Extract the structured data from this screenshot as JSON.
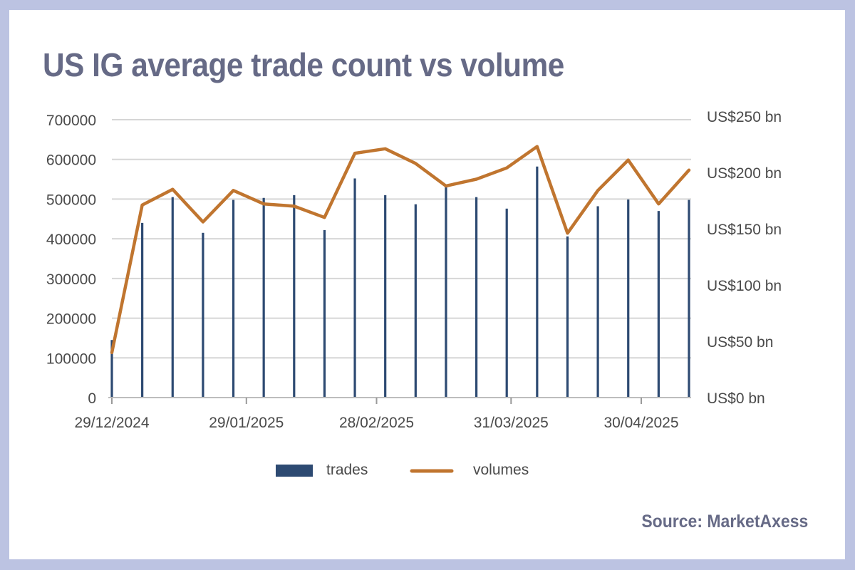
{
  "title": "US IG average trade count vs volume",
  "source": "Source: MarketAxess",
  "colors": {
    "background_frame": "#bcc3e2",
    "title": "#666a86",
    "trades": "#2d4a72",
    "volumes": "#c0752f",
    "grid": "#d6d6d6",
    "axis_text": "#4a4a4a"
  },
  "chart_data": {
    "type": "bar",
    "combo": "bar + line, dual y-axis",
    "x_dates": [
      "29/12/2024",
      "05/01/2025",
      "12/01/2025",
      "19/01/2025",
      "26/01/2025",
      "02/02/2025",
      "09/02/2025",
      "16/02/2025",
      "23/02/2025",
      "02/03/2025",
      "09/03/2025",
      "16/03/2025",
      "23/03/2025",
      "30/03/2025",
      "06/04/2025",
      "13/04/2025",
      "20/04/2025",
      "27/04/2025",
      "04/05/2025",
      "11/05/2025"
    ],
    "x_tick_labels": [
      "29/12/2024",
      "29/01/2025",
      "28/02/2025",
      "31/03/2025",
      "30/04/2025"
    ],
    "x_tick_dates": [
      "29/12/2024",
      "29/01/2025",
      "28/02/2025",
      "31/03/2025",
      "30/04/2025"
    ],
    "series": [
      {
        "name": "trades",
        "kind": "bar",
        "axis": "left",
        "values": [
          145000,
          440000,
          505000,
          415000,
          498000,
          503000,
          510000,
          422000,
          552000,
          510000,
          487000,
          530000,
          505000,
          476000,
          582000,
          406000,
          482000,
          499000,
          470000,
          498000
        ]
      },
      {
        "name": "volumes",
        "kind": "line",
        "axis": "right",
        "unit": "US$ bn",
        "values": [
          40,
          171,
          185,
          156,
          184,
          172,
          170,
          160,
          217,
          221,
          208,
          188,
          194,
          204,
          223,
          146,
          184,
          211,
          172,
          202
        ]
      }
    ],
    "y_left": {
      "ticks": [
        "0",
        "100000",
        "200000",
        "300000",
        "400000",
        "500000",
        "600000",
        "700000"
      ],
      "range": [
        0,
        700000
      ]
    },
    "y_right": {
      "ticks": [
        "US$0 bn",
        "US$50 bn",
        "US$100 bn",
        "US$150 bn",
        "US$200 bn",
        "US$250 bn"
      ],
      "range": [
        0,
        250
      ]
    },
    "grid": "horizontal",
    "legend_position": "bottom-center",
    "legend": [
      "trades",
      "volumes"
    ]
  }
}
